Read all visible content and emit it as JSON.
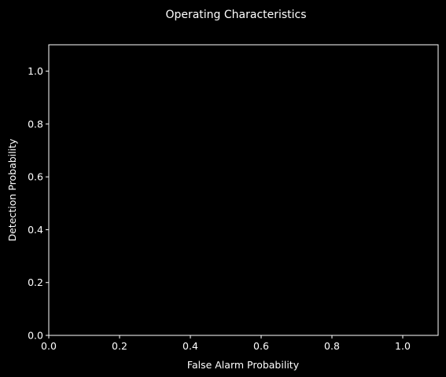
{
  "chart_data": {
    "type": "line",
    "title": "Operating Characteristics",
    "xlabel": "False Alarm Probability",
    "ylabel": "Detection Probability",
    "xlim": [
      0,
      1.1
    ],
    "ylim": [
      0,
      1.1
    ],
    "xticks": [
      "0.0",
      "0.2",
      "0.4",
      "0.6",
      "0.8",
      "1.0"
    ],
    "yticks": [
      "0.0",
      "0.2",
      "0.4",
      "0.6",
      "0.8",
      "1.0"
    ],
    "series": [],
    "grid": false,
    "background": "#000000",
    "foreground": "#ffffff"
  }
}
